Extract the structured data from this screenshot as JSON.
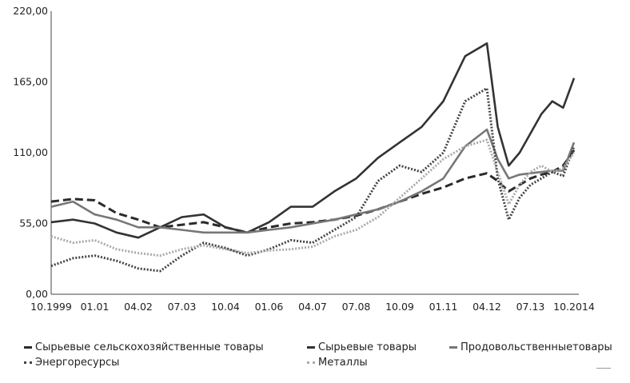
{
  "chart_data": {
    "type": "line",
    "title": "",
    "xlabel": "",
    "ylabel": "",
    "x_ticks": [
      "10.1999",
      "01.01",
      "04.02",
      "07.03",
      "10.04",
      "01.06",
      "04.07",
      "07.08",
      "10.09",
      "01.11",
      "04.12",
      "07.13",
      "10.2014"
    ],
    "y_ticks": [
      "0,00",
      "55,00",
      "110,00",
      "165,00",
      "220,00"
    ],
    "ylim": [
      0,
      220
    ],
    "grid": false,
    "legend_position": "bottom",
    "x": [
      0,
      0.5,
      1,
      1.5,
      2,
      2.5,
      3,
      3.5,
      4,
      4.5,
      5,
      5.5,
      6,
      6.5,
      7,
      7.5,
      8,
      8.5,
      9,
      9.5,
      10,
      10.25,
      10.5,
      10.75,
      11,
      11.25,
      11.5,
      11.75,
      12
    ],
    "series": [
      {
        "name": "Сырьевые сельскохозяйственные товары",
        "color": "#2a2a2a",
        "style": "dashed",
        "values": [
          72,
          74,
          73,
          63,
          58,
          52,
          54,
          56,
          52,
          48,
          52,
          55,
          56,
          58,
          61,
          66,
          72,
          78,
          83,
          90,
          94,
          88,
          80,
          85,
          90,
          93,
          95,
          100,
          112
        ]
      },
      {
        "name": "Сырьевые товары",
        "color": "#333333",
        "style": "solid",
        "values": [
          56,
          58,
          55,
          48,
          44,
          52,
          60,
          62,
          52,
          48,
          56,
          68,
          68,
          80,
          90,
          106,
          118,
          130,
          150,
          185,
          195,
          130,
          100,
          110,
          125,
          140,
          150,
          145,
          168
        ]
      },
      {
        "name": "Продовольственныетовары",
        "color": "#777777",
        "style": "solid",
        "values": [
          68,
          72,
          62,
          58,
          52,
          52,
          50,
          48,
          48,
          48,
          50,
          52,
          55,
          58,
          62,
          66,
          72,
          80,
          90,
          115,
          128,
          105,
          90,
          93,
          94,
          95,
          96,
          96,
          118
        ]
      },
      {
        "name": "Энергоресурсы",
        "color": "#444444",
        "style": "dotted",
        "values": [
          22,
          28,
          30,
          26,
          20,
          18,
          30,
          40,
          36,
          30,
          35,
          42,
          40,
          50,
          60,
          88,
          100,
          95,
          110,
          150,
          160,
          90,
          58,
          75,
          85,
          90,
          95,
          92,
          115
        ]
      },
      {
        "name": "Металлы",
        "color": "#aaaaaa",
        "style": "dotted",
        "values": [
          45,
          40,
          42,
          35,
          32,
          30,
          35,
          38,
          35,
          32,
          34,
          35,
          37,
          45,
          50,
          60,
          75,
          90,
          105,
          115,
          120,
          95,
          70,
          85,
          95,
          100,
          95,
          98,
          110
        ]
      }
    ]
  },
  "legend": [
    {
      "label": "Сырьевые сельскохозяйственные товары",
      "color": "#2a2a2a",
      "style": "dashed"
    },
    {
      "label": "Сырьевые товары",
      "color": "#333333",
      "style": "solid"
    },
    {
      "label": "Продовольственныетовары",
      "color": "#777777",
      "style": "solid"
    },
    {
      "label": "Энергоресурсы",
      "color": "#444444",
      "style": "dotted"
    },
    {
      "label": "Металлы",
      "color": "#aaaaaa",
      "style": "dotted"
    }
  ]
}
